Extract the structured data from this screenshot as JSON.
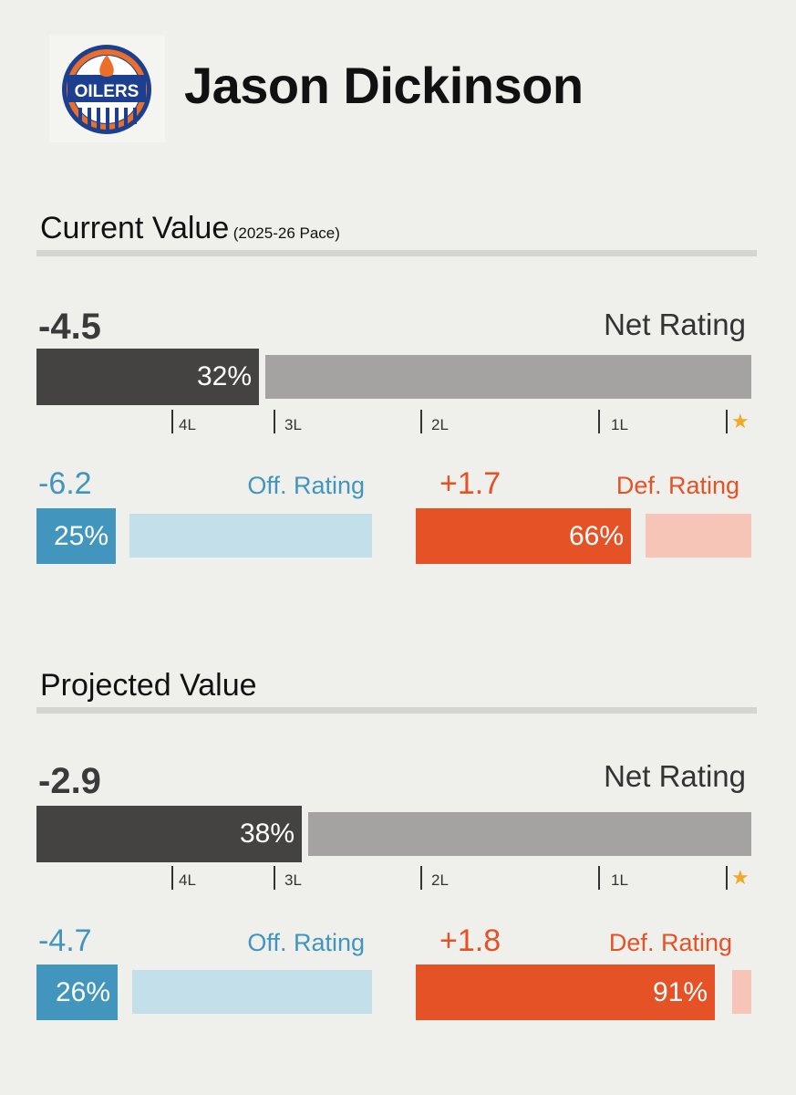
{
  "player": {
    "name": "Jason Dickinson",
    "team_logo_text": "OILERS"
  },
  "colors": {
    "net_dark": "#454341",
    "net_grey": "#a5a3a2",
    "off_blue": "#4296bd",
    "off_light": "#c2dfea",
    "def_orange": "#e55226",
    "def_light": "#f7c5b8",
    "star": "#f0a929",
    "logo_blue": "#1c3f8f",
    "logo_orange": "#ec6f29"
  },
  "chart_data": [
    {
      "type": "bar",
      "title": "Current Value",
      "subtitle": "(2025-26 Pace)",
      "net": {
        "label": "Net Rating",
        "value": "-4.5",
        "percentile": 32,
        "percentile_text": "32%"
      },
      "tiers": [
        "4L",
        "3L",
        "2L",
        "1L",
        "★"
      ],
      "offense": {
        "label": "Off. Rating",
        "value": "-6.2",
        "percentile": 25,
        "percentile_text": "25%"
      },
      "defense": {
        "label": "Def. Rating",
        "value": "+1.7",
        "percentile": 66,
        "percentile_text": "66%"
      }
    },
    {
      "type": "bar",
      "title": "Projected Value",
      "subtitle": "",
      "net": {
        "label": "Net Rating",
        "value": "-2.9",
        "percentile": 38,
        "percentile_text": "38%"
      },
      "tiers": [
        "4L",
        "3L",
        "2L",
        "1L",
        "★"
      ],
      "offense": {
        "label": "Off. Rating",
        "value": "-4.7",
        "percentile": 26,
        "percentile_text": "26%"
      },
      "defense": {
        "label": "Def. Rating",
        "value": "+1.8",
        "percentile": 91,
        "percentile_text": "91%"
      }
    }
  ]
}
